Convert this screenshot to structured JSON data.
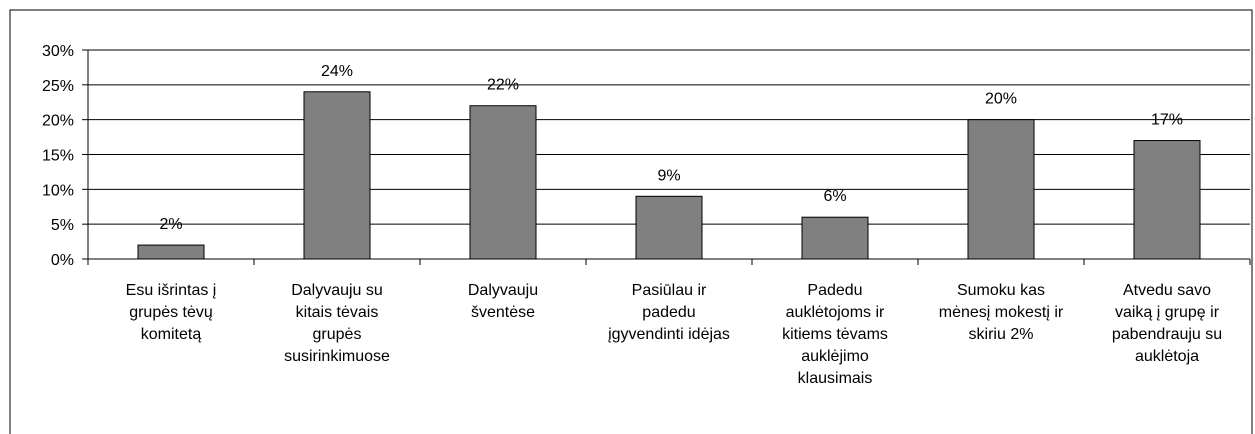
{
  "chart_data": {
    "type": "bar",
    "categories": [
      "Esu išrintas į\ngrupės tėvų\nkomitetą",
      "Dalyvauju su\nkitais tėvais\ngrupės\nsusirinkimuose",
      "Dalyvauju\nšventėse",
      "Pasiūlau ir\npadedu\nįgyvendinti idėjas",
      "Padedu\nauklėtojoms ir\nkitiems tėvams\nauklėjimo\nklausimais",
      "Sumoku kas\nmėnesį mokestį ir\nskiriu 2%",
      "Atvedu savo\nvaiką į grupę ir\npabendrauju su\nauklėtoja"
    ],
    "values": [
      2,
      24,
      22,
      9,
      6,
      20,
      17
    ],
    "value_labels": [
      "2%",
      "24%",
      "22%",
      "9%",
      "6%",
      "20%",
      "17%"
    ],
    "color": "#808080",
    "ylim": [
      0,
      30
    ],
    "yticks": [
      {
        "value": 0,
        "label": "0%"
      },
      {
        "value": 5,
        "label": "5%"
      },
      {
        "value": 10,
        "label": "10%"
      },
      {
        "value": 15,
        "label": "15%"
      },
      {
        "value": 20,
        "label": "20%"
      },
      {
        "value": 25,
        "label": "25%"
      },
      {
        "value": 30,
        "label": "30%"
      }
    ],
    "grid": true
  }
}
